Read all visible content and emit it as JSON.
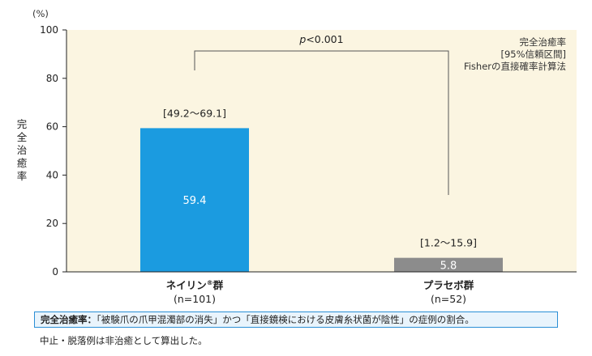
{
  "chart_data": {
    "type": "bar",
    "ylabel": "完全治癒率",
    "y_unit": "(%)",
    "ylim": [
      0,
      100
    ],
    "yticks": [
      0,
      20,
      40,
      60,
      80,
      100
    ],
    "categories": [
      {
        "name": "ネイリン",
        "sup": "®",
        "suffix": "群",
        "n": "(n=101)"
      },
      {
        "name": "プラセボ群",
        "sup": "",
        "suffix": "",
        "n": "(n=52)"
      }
    ],
    "values": [
      59.4,
      5.8
    ],
    "value_labels": [
      "59.4",
      "5.8"
    ],
    "ci_labels": [
      "[49.2〜69.1]",
      "[1.2〜15.9]"
    ],
    "bar_colors": [
      "#1b9be0",
      "#8c8c8c"
    ],
    "plot_background": "#fbf5e1",
    "significance": {
      "p_italic": "p",
      "p_rest": "<0.001"
    },
    "legend_lines": [
      "完全治癒率",
      "[95%信頼区間]",
      "Fisherの直接確率計算法"
    ]
  },
  "note": {
    "bold": "完全治癒率：",
    "text": "「被験爪の爪甲混濁部の消失」かつ「直接鏡検における皮膚糸状菌が陰性」の症例の割合。"
  },
  "footnote": "中止・脱落例は非治癒として算出した。"
}
